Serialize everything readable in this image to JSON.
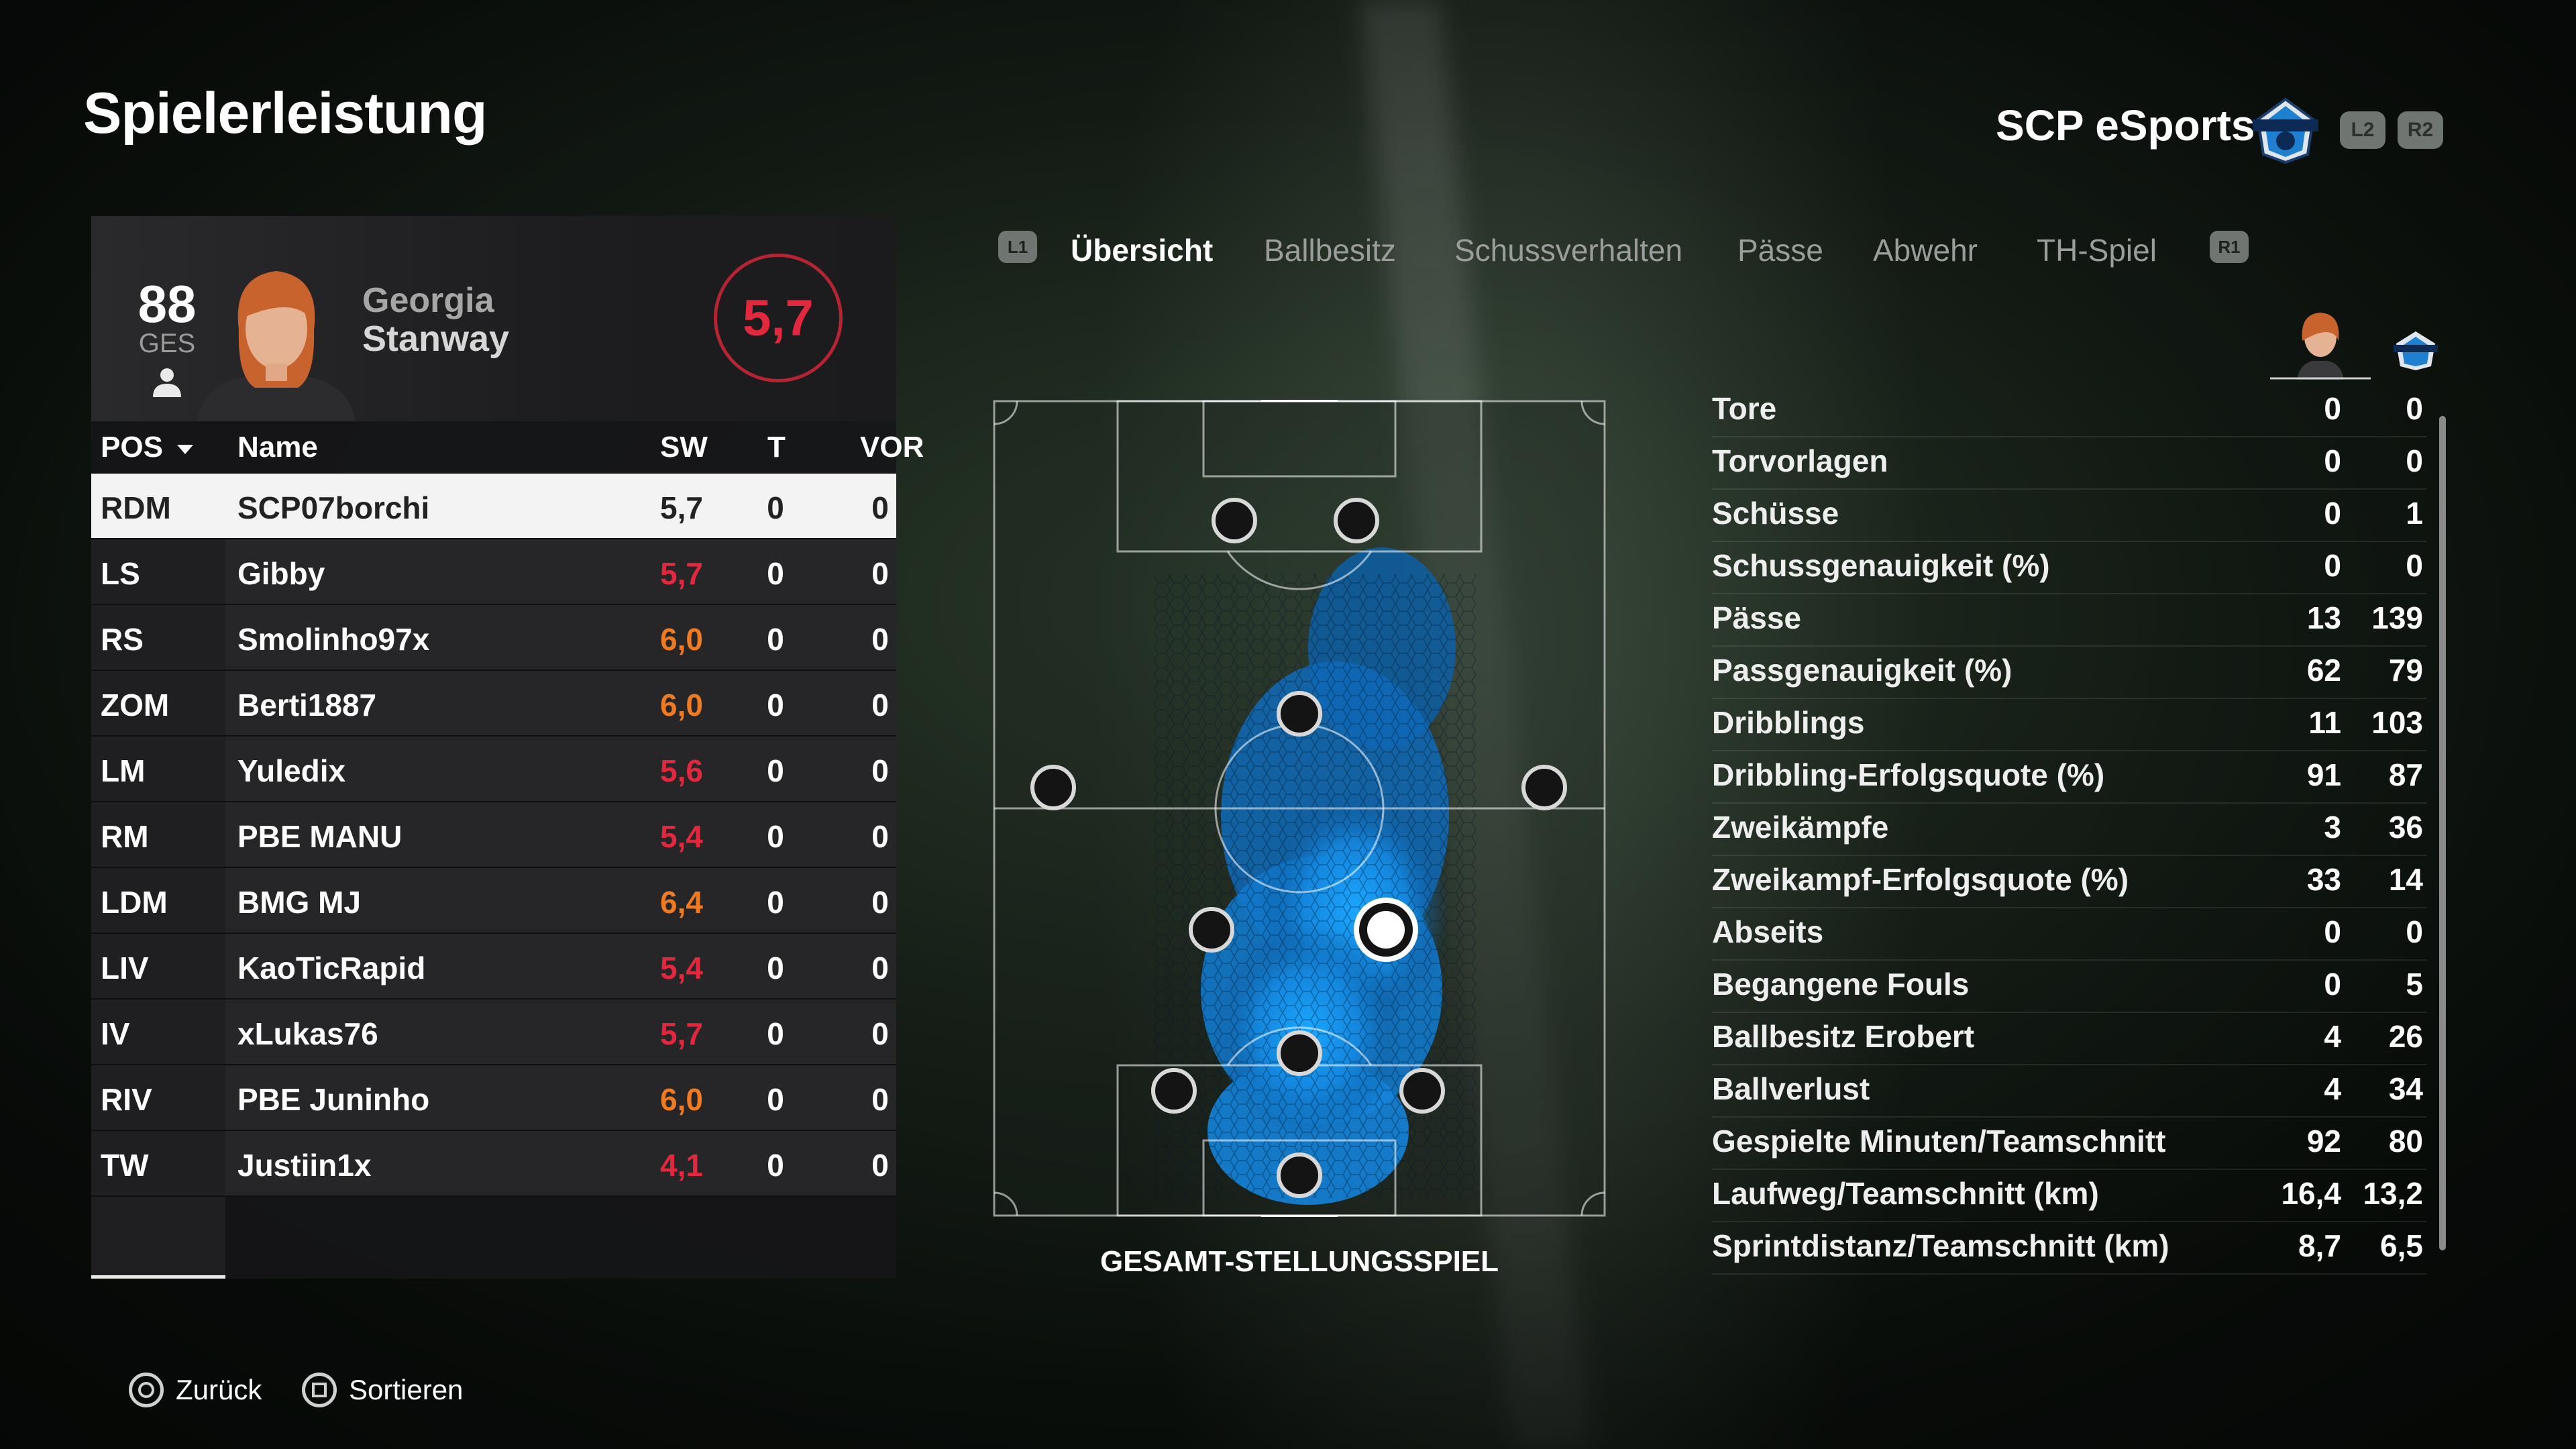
{
  "title": "Spielerleistung",
  "team": {
    "name": "SCP eSports",
    "l2": "L2",
    "r2": "R2"
  },
  "player": {
    "ovr": "88",
    "ovr_label": "GES",
    "first_name": "Georgia",
    "last_name": "Stanway",
    "rating": "5,7"
  },
  "table": {
    "headers": {
      "pos": "POS",
      "name": "Name",
      "sw": "SW",
      "t": "T",
      "vor": "VOR"
    },
    "rows": [
      {
        "pos": "RDM",
        "name": "SCP07borchi",
        "sw": "5,7",
        "t": "0",
        "vor": "0",
        "sw_color": "#222222"
      },
      {
        "pos": "LS",
        "name": "Gibby",
        "sw": "5,7",
        "t": "0",
        "vor": "0",
        "sw_color": "#e2283d"
      },
      {
        "pos": "RS",
        "name": "Smolinho97x",
        "sw": "6,0",
        "t": "0",
        "vor": "0",
        "sw_color": "#f07a1f"
      },
      {
        "pos": "ZOM",
        "name": "Berti1887",
        "sw": "6,0",
        "t": "0",
        "vor": "0",
        "sw_color": "#f07a1f"
      },
      {
        "pos": "LM",
        "name": "Yuledix",
        "sw": "5,6",
        "t": "0",
        "vor": "0",
        "sw_color": "#e2283d"
      },
      {
        "pos": "RM",
        "name": "PBE MANU",
        "sw": "5,4",
        "t": "0",
        "vor": "0",
        "sw_color": "#e2283d"
      },
      {
        "pos": "LDM",
        "name": "BMG MJ",
        "sw": "6,4",
        "t": "0",
        "vor": "0",
        "sw_color": "#f07a1f"
      },
      {
        "pos": "LIV",
        "name": "KaoTicRapid",
        "sw": "5,4",
        "t": "0",
        "vor": "0",
        "sw_color": "#e2283d"
      },
      {
        "pos": "IV",
        "name": "xLukas76",
        "sw": "5,7",
        "t": "0",
        "vor": "0",
        "sw_color": "#e2283d"
      },
      {
        "pos": "RIV",
        "name": "PBE Juninho",
        "sw": "6,0",
        "t": "0",
        "vor": "0",
        "sw_color": "#f07a1f"
      },
      {
        "pos": "TW",
        "name": "Justiin1x",
        "sw": "4,1",
        "t": "0",
        "vor": "0",
        "sw_color": "#e2283d"
      }
    ]
  },
  "tabs": {
    "l1": "L1",
    "r1": "R1",
    "items": [
      "Übersicht",
      "Ballbesitz",
      "Schussverhalten",
      "Pässe",
      "Abwehr",
      "TH-Spiel"
    ],
    "active": "Übersicht"
  },
  "pitch_caption": "GESAMT-STELLUNGSSPIEL",
  "stats": [
    {
      "label": "Tore",
      "player": "0",
      "team": "0"
    },
    {
      "label": "Torvorlagen",
      "player": "0",
      "team": "0"
    },
    {
      "label": "Schüsse",
      "player": "0",
      "team": "1"
    },
    {
      "label": "Schussgenauigkeit (%)",
      "player": "0",
      "team": "0"
    },
    {
      "label": "Pässe",
      "player": "13",
      "team": "139"
    },
    {
      "label": "Passgenauigkeit (%)",
      "player": "62",
      "team": "79"
    },
    {
      "label": "Dribblings",
      "player": "11",
      "team": "103"
    },
    {
      "label": "Dribbling-Erfolgsquote (%)",
      "player": "91",
      "team": "87"
    },
    {
      "label": "Zweikämpfe",
      "player": "3",
      "team": "36"
    },
    {
      "label": "Zweikampf-Erfolgsquote (%)",
      "player": "33",
      "team": "14"
    },
    {
      "label": "Abseits",
      "player": "0",
      "team": "0"
    },
    {
      "label": "Begangene Fouls",
      "player": "0",
      "team": "5"
    },
    {
      "label": "Ballbesitz Erobert",
      "player": "4",
      "team": "26"
    },
    {
      "label": "Ballverlust",
      "player": "4",
      "team": "34"
    },
    {
      "label": "Gespielte Minuten/Teamschnitt",
      "player": "92",
      "team": "80"
    },
    {
      "label": "Laufweg/Teamschnitt (km)",
      "player": "16,4",
      "team": "13,2"
    },
    {
      "label": "Sprintdistanz/Teamschnitt (km)",
      "player": "8,7",
      "team": "6,5"
    }
  ],
  "footer": {
    "back": "Zurück",
    "sort": "Sortieren"
  },
  "colors": {
    "rating_red": "#e2283d",
    "rating_orange": "#f07a1f",
    "heat_blue": "#1a9bff"
  }
}
